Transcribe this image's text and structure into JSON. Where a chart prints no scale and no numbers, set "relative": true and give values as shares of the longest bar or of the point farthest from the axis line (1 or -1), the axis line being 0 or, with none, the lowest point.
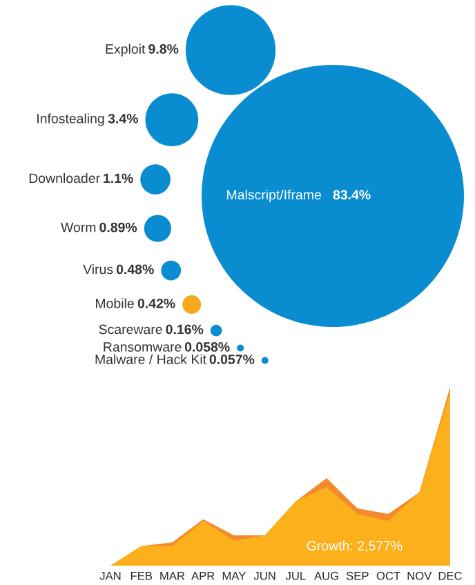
{
  "chart_data": [
    {
      "type": "other",
      "categories": [
        "Exploit",
        "Infostealing",
        "Malscript/Iframe",
        "Downloader",
        "Worm",
        "Virus",
        "Mobile",
        "Scareware",
        "Ransomware",
        "Malware / Hack Kit"
      ],
      "values": [
        9.8,
        3.4,
        83.4,
        1.1,
        0.89,
        0.48,
        0.42,
        0.16,
        0.058,
        0.057
      ],
      "value_labels": [
        "9.8%",
        "3.4%",
        "83.4%",
        "1.1%",
        "0.89%",
        "0.48%",
        "0.42%",
        "0.16%",
        "0.058%",
        "0.057%"
      ],
      "colors": [
        "#0a8dd0",
        "#0a8dd0",
        "#0a8dd0",
        "#0a8dd0",
        "#0a8dd0",
        "#0a8dd0",
        "#f7a81b",
        "#0a8dd0",
        "#0a8dd0",
        "#0a8dd0"
      ]
    },
    {
      "type": "area",
      "relative": true,
      "categories": [
        "JAN",
        "FEB",
        "MAR",
        "APR",
        "MAY",
        "JUN",
        "JUL",
        "AUG",
        "SEP",
        "OCT",
        "NOV",
        "DEC"
      ],
      "series": [
        {
          "color": "#f58a2c",
          "values": [
            0,
            0.11,
            0.13,
            0.26,
            0.17,
            0.17,
            0.36,
            0.49,
            0.32,
            0.29,
            0.41,
            1
          ]
        },
        {
          "color": "#fbb01c",
          "values": [
            0,
            0.11,
            0.11,
            0.25,
            0.14,
            0.17,
            0.36,
            0.44,
            0.29,
            0.25,
            0.41,
            0.97
          ]
        }
      ],
      "annotations": [
        "Growth: 2,577%"
      ]
    }
  ]
}
